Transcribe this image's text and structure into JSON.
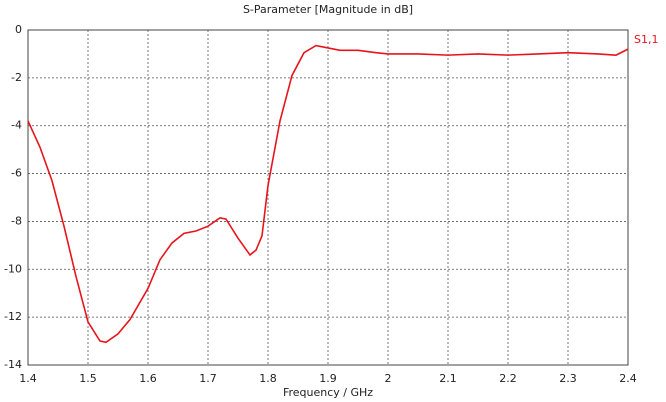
{
  "chart_data": {
    "type": "line",
    "title": "S-Parameter [Magnitude in dB]",
    "x_label": "Frequency / GHz",
    "x": [
      1.4,
      1.42,
      1.44,
      1.46,
      1.48,
      1.5,
      1.52,
      1.53,
      1.55,
      1.57,
      1.6,
      1.62,
      1.64,
      1.66,
      1.68,
      1.7,
      1.72,
      1.73,
      1.75,
      1.77,
      1.78,
      1.79,
      1.8,
      1.82,
      1.84,
      1.86,
      1.88,
      1.9,
      1.92,
      1.95,
      1.98,
      2.0,
      2.05,
      2.1,
      2.15,
      2.2,
      2.25,
      2.3,
      2.35,
      2.38,
      2.4
    ],
    "series": [
      {
        "name": "S1,1",
        "color": "#e8141c",
        "values": [
          -3.8,
          -4.9,
          -6.3,
          -8.2,
          -10.3,
          -12.2,
          -13.0,
          -13.05,
          -12.7,
          -12.1,
          -10.8,
          -9.6,
          -8.9,
          -8.5,
          -8.4,
          -8.2,
          -7.85,
          -7.9,
          -8.7,
          -9.4,
          -9.2,
          -8.6,
          -6.5,
          -3.8,
          -1.9,
          -0.95,
          -0.65,
          -0.75,
          -0.85,
          -0.85,
          -0.95,
          -1.0,
          -1.0,
          -1.05,
          -1.0,
          -1.05,
          -1.0,
          -0.95,
          -1.0,
          -1.05,
          -0.8
        ]
      }
    ],
    "xlim": [
      1.4,
      2.4
    ],
    "xticks": [
      1.4,
      1.5,
      1.6,
      1.7,
      1.8,
      1.9,
      2,
      2.1,
      2.2,
      2.3,
      2.4
    ],
    "ylim": [
      -14,
      0
    ],
    "yticks": [
      0,
      -2,
      -4,
      -6,
      -8,
      -10,
      -12,
      -14
    ],
    "grid": true
  }
}
